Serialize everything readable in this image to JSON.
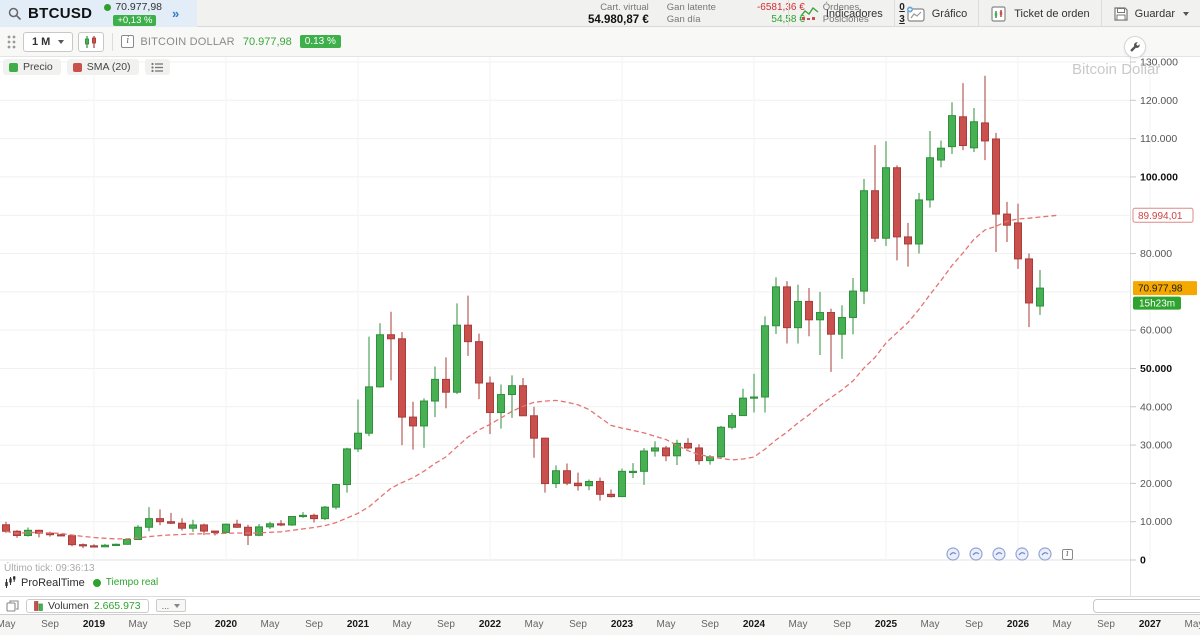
{
  "header": {
    "symbol": "BTCUSD",
    "quote": {
      "price": "70.977,98",
      "change_pct": "+0,13 %"
    },
    "expand_icon": "»",
    "stats": {
      "cart_label": "Cart. virtual",
      "cart_value": "54.980,87 €",
      "gan_latente_label": "Gan latente",
      "gan_latente_value": "-6581,36 €",
      "gan_dia_label": "Gan día",
      "gan_dia_value": "54,58 €",
      "ordenes_label": "Órdenes",
      "ordenes_value": "0",
      "posiciones_label": "Posiciones",
      "posiciones_value": "3"
    },
    "buttons": {
      "indicators": "Indicadores",
      "chart": "Gráfico",
      "order_ticket": "Ticket de orden",
      "save": "Guardar"
    }
  },
  "toolbar": {
    "timeframe": "1 M",
    "instrument": "BITCOIN DOLLAR",
    "price": "70.977,98",
    "change_pct": "0.13 %"
  },
  "icons": {
    "info_glyph": "i"
  },
  "legend": {
    "price_label": "Precio",
    "sma_label": "SMA (20)"
  },
  "watermark": "Bitcoin Dollar",
  "status": {
    "last_tick": "Último tick: 09:36:13",
    "brand": "ProRealTime",
    "realtime": "Tiempo real"
  },
  "volume_row": {
    "label": "Volumen",
    "value": "2.665.973",
    "more": "..."
  },
  "colors": {
    "up_fill": "#46b053",
    "up_stroke": "#2f8f3a",
    "down_fill": "#c9504c",
    "down_stroke": "#a83d3b",
    "sma_line": "#e57373",
    "grid": "#f1f1f1",
    "axis_border": "#e0e0e0",
    "price_tag_bg": "#f5a800",
    "countdown_bg": "#2fa32f",
    "sma_tag_stroke": "#dd8888",
    "sma_tag_text": "#cc4444",
    "accent_green": "#3db04b",
    "accent_blue": "#2f7cc4"
  },
  "chart_data": {
    "type": "candlestick",
    "title": "Bitcoin Dollar",
    "interval": "1M",
    "start_month": "2018-05",
    "ylim": [
      0,
      130000
    ],
    "grid": true,
    "sma_period": 20,
    "markers": {
      "sma_value": 89994.01,
      "sma_label": "89.994,01",
      "price_value": 70977.98,
      "price_label": "70.977,98",
      "countdown": "15h23m"
    },
    "y_ticks": [
      {
        "v": 0,
        "label": "0",
        "bold": true
      },
      {
        "v": 10000,
        "label": "10.000"
      },
      {
        "v": 20000,
        "label": "20.000"
      },
      {
        "v": 30000,
        "label": "30.000"
      },
      {
        "v": 40000,
        "label": "40.000"
      },
      {
        "v": 50000,
        "label": "50.000",
        "bold": true
      },
      {
        "v": 60000,
        "label": "60.000"
      },
      {
        "v": 80000,
        "label": "80.000"
      },
      {
        "v": 100000,
        "label": "100.000",
        "bold": true
      },
      {
        "v": 110000,
        "label": "110.000"
      },
      {
        "v": 120000,
        "label": "120.000"
      },
      {
        "v": 130000,
        "label": "130.000"
      }
    ],
    "x_labels": [
      {
        "m": 0,
        "label": "May"
      },
      {
        "m": 4,
        "label": "Sep"
      },
      {
        "m": 8,
        "label": "2019",
        "bold": true
      },
      {
        "m": 12,
        "label": "May"
      },
      {
        "m": 16,
        "label": "Sep"
      },
      {
        "m": 20,
        "label": "2020",
        "bold": true
      },
      {
        "m": 24,
        "label": "May"
      },
      {
        "m": 28,
        "label": "Sep"
      },
      {
        "m": 32,
        "label": "2021",
        "bold": true
      },
      {
        "m": 36,
        "label": "May"
      },
      {
        "m": 40,
        "label": "Sep"
      },
      {
        "m": 44,
        "label": "2022",
        "bold": true
      },
      {
        "m": 48,
        "label": "May"
      },
      {
        "m": 52,
        "label": "Sep"
      },
      {
        "m": 56,
        "label": "2023",
        "bold": true
      },
      {
        "m": 60,
        "label": "May"
      },
      {
        "m": 64,
        "label": "Sep"
      },
      {
        "m": 68,
        "label": "2024",
        "bold": true
      },
      {
        "m": 72,
        "label": "May"
      },
      {
        "m": 76,
        "label": "Sep"
      },
      {
        "m": 80,
        "label": "2025",
        "bold": true
      },
      {
        "m": 84,
        "label": "May"
      },
      {
        "m": 88,
        "label": "Sep"
      },
      {
        "m": 92,
        "label": "2026",
        "bold": true
      },
      {
        "m": 96,
        "label": "May"
      },
      {
        "m": 100,
        "label": "Sep"
      },
      {
        "m": 104,
        "label": "2027",
        "bold": true
      },
      {
        "m": 108,
        "label": "May"
      }
    ],
    "ohlc": [
      [
        9200,
        10000,
        7100,
        7500
      ],
      [
        7500,
        7800,
        5800,
        6400
      ],
      [
        6400,
        8500,
        6100,
        7750
      ],
      [
        7750,
        7900,
        5900,
        7000
      ],
      [
        7000,
        7400,
        6100,
        6600
      ],
      [
        6600,
        6900,
        6200,
        6350
      ],
      [
        6350,
        6500,
        3600,
        4000
      ],
      [
        4000,
        4300,
        3100,
        3700
      ],
      [
        3700,
        4100,
        3300,
        3450
      ],
      [
        3450,
        4200,
        3350,
        3850
      ],
      [
        3850,
        4300,
        3650,
        4100
      ],
      [
        4100,
        5600,
        4000,
        5350
      ],
      [
        5350,
        9100,
        5300,
        8550
      ],
      [
        8550,
        13800,
        7500,
        10800
      ],
      [
        10800,
        13200,
        9100,
        10000
      ],
      [
        10000,
        12300,
        9400,
        9600
      ],
      [
        9600,
        10900,
        7700,
        8300
      ],
      [
        8300,
        10500,
        7300,
        9150
      ],
      [
        9150,
        9500,
        6500,
        7550
      ],
      [
        7550,
        7700,
        6400,
        7200
      ],
      [
        7200,
        9500,
        6900,
        9350
      ],
      [
        9350,
        10500,
        8400,
        8550
      ],
      [
        8550,
        9200,
        3900,
        6450
      ],
      [
        6450,
        9400,
        6200,
        8650
      ],
      [
        8650,
        10000,
        8100,
        9450
      ],
      [
        9450,
        10400,
        8800,
        9150
      ],
      [
        9150,
        11400,
        8900,
        11350
      ],
      [
        11350,
        12500,
        11000,
        11650
      ],
      [
        11650,
        12100,
        9800,
        10800
      ],
      [
        10800,
        14100,
        10400,
        13800
      ],
      [
        13800,
        19900,
        13200,
        19700
      ],
      [
        19700,
        29300,
        17600,
        29000
      ],
      [
        29000,
        41900,
        28200,
        33100
      ],
      [
        33100,
        58300,
        32300,
        45200
      ],
      [
        45200,
        61800,
        45000,
        58800
      ],
      [
        58800,
        64800,
        46900,
        57750
      ],
      [
        57750,
        59500,
        30000,
        37300
      ],
      [
        37300,
        41300,
        28800,
        35000
      ],
      [
        35000,
        42200,
        29300,
        41500
      ],
      [
        41500,
        50500,
        37300,
        47150
      ],
      [
        47150,
        52900,
        39600,
        43800
      ],
      [
        43800,
        67000,
        43300,
        61300
      ],
      [
        61300,
        69000,
        53300,
        57000
      ],
      [
        57000,
        59100,
        42000,
        46200
      ],
      [
        46200,
        47900,
        32900,
        38500
      ],
      [
        38500,
        45800,
        34300,
        43200
      ],
      [
        43200,
        48200,
        37100,
        45500
      ],
      [
        45500,
        47500,
        37600,
        37650
      ],
      [
        37650,
        40000,
        26700,
        31800
      ],
      [
        31800,
        31900,
        17600,
        19950
      ],
      [
        19950,
        24700,
        18800,
        23300
      ],
      [
        23300,
        25200,
        19500,
        20050
      ],
      [
        20050,
        22800,
        18100,
        19400
      ],
      [
        19400,
        21000,
        18200,
        20500
      ],
      [
        20500,
        21500,
        15500,
        17150
      ],
      [
        17150,
        18400,
        16300,
        16550
      ],
      [
        16550,
        23900,
        16500,
        23150
      ],
      [
        23150,
        25300,
        21400,
        23150
      ],
      [
        23150,
        29200,
        19600,
        28450
      ],
      [
        28450,
        31000,
        27000,
        29250
      ],
      [
        29250,
        29800,
        25800,
        27200
      ],
      [
        27200,
        31400,
        24800,
        30450
      ],
      [
        30450,
        31800,
        28900,
        29250
      ],
      [
        29250,
        30200,
        24900,
        25950
      ],
      [
        25950,
        27400,
        24900,
        26950
      ],
      [
        26950,
        35000,
        26500,
        34650
      ],
      [
        34650,
        38400,
        34100,
        37700
      ],
      [
        37700,
        44700,
        37600,
        42250
      ],
      [
        42250,
        48600,
        38500,
        42550
      ],
      [
        42550,
        63600,
        38500,
        61150
      ],
      [
        61150,
        73800,
        59000,
        71300
      ],
      [
        71300,
        72800,
        56500,
        60650
      ],
      [
        60650,
        71900,
        56500,
        67500
      ],
      [
        67500,
        71000,
        58400,
        62700
      ],
      [
        62700,
        70000,
        53500,
        64600
      ],
      [
        64600,
        65600,
        49100,
        58950
      ],
      [
        58950,
        66500,
        52500,
        63300
      ],
      [
        63300,
        73600,
        58900,
        70200
      ],
      [
        70200,
        99500,
        66800,
        96400
      ],
      [
        96400,
        108300,
        83000,
        84000
      ],
      [
        84000,
        109300,
        82000,
        102400
      ],
      [
        102400,
        103000,
        78200,
        84350
      ],
      [
        84350,
        88000,
        76600,
        82500
      ],
      [
        82500,
        95800,
        80000,
        94000
      ],
      [
        94000,
        112000,
        92000,
        105000
      ],
      [
        104400,
        109500,
        102500,
        107500
      ],
      [
        107900,
        119500,
        106000,
        116000
      ],
      [
        115700,
        124500,
        107000,
        108200
      ],
      [
        107600,
        118000,
        106500,
        114400
      ],
      [
        114100,
        126400,
        104400,
        109400
      ],
      [
        109900,
        111500,
        80400,
        90300
      ],
      [
        90300,
        93500,
        83000,
        87400
      ],
      [
        88000,
        93000,
        76000,
        78600
      ],
      [
        78600,
        80000,
        60800,
        67100
      ],
      [
        66300,
        75700,
        64000,
        70977.98
      ]
    ]
  }
}
